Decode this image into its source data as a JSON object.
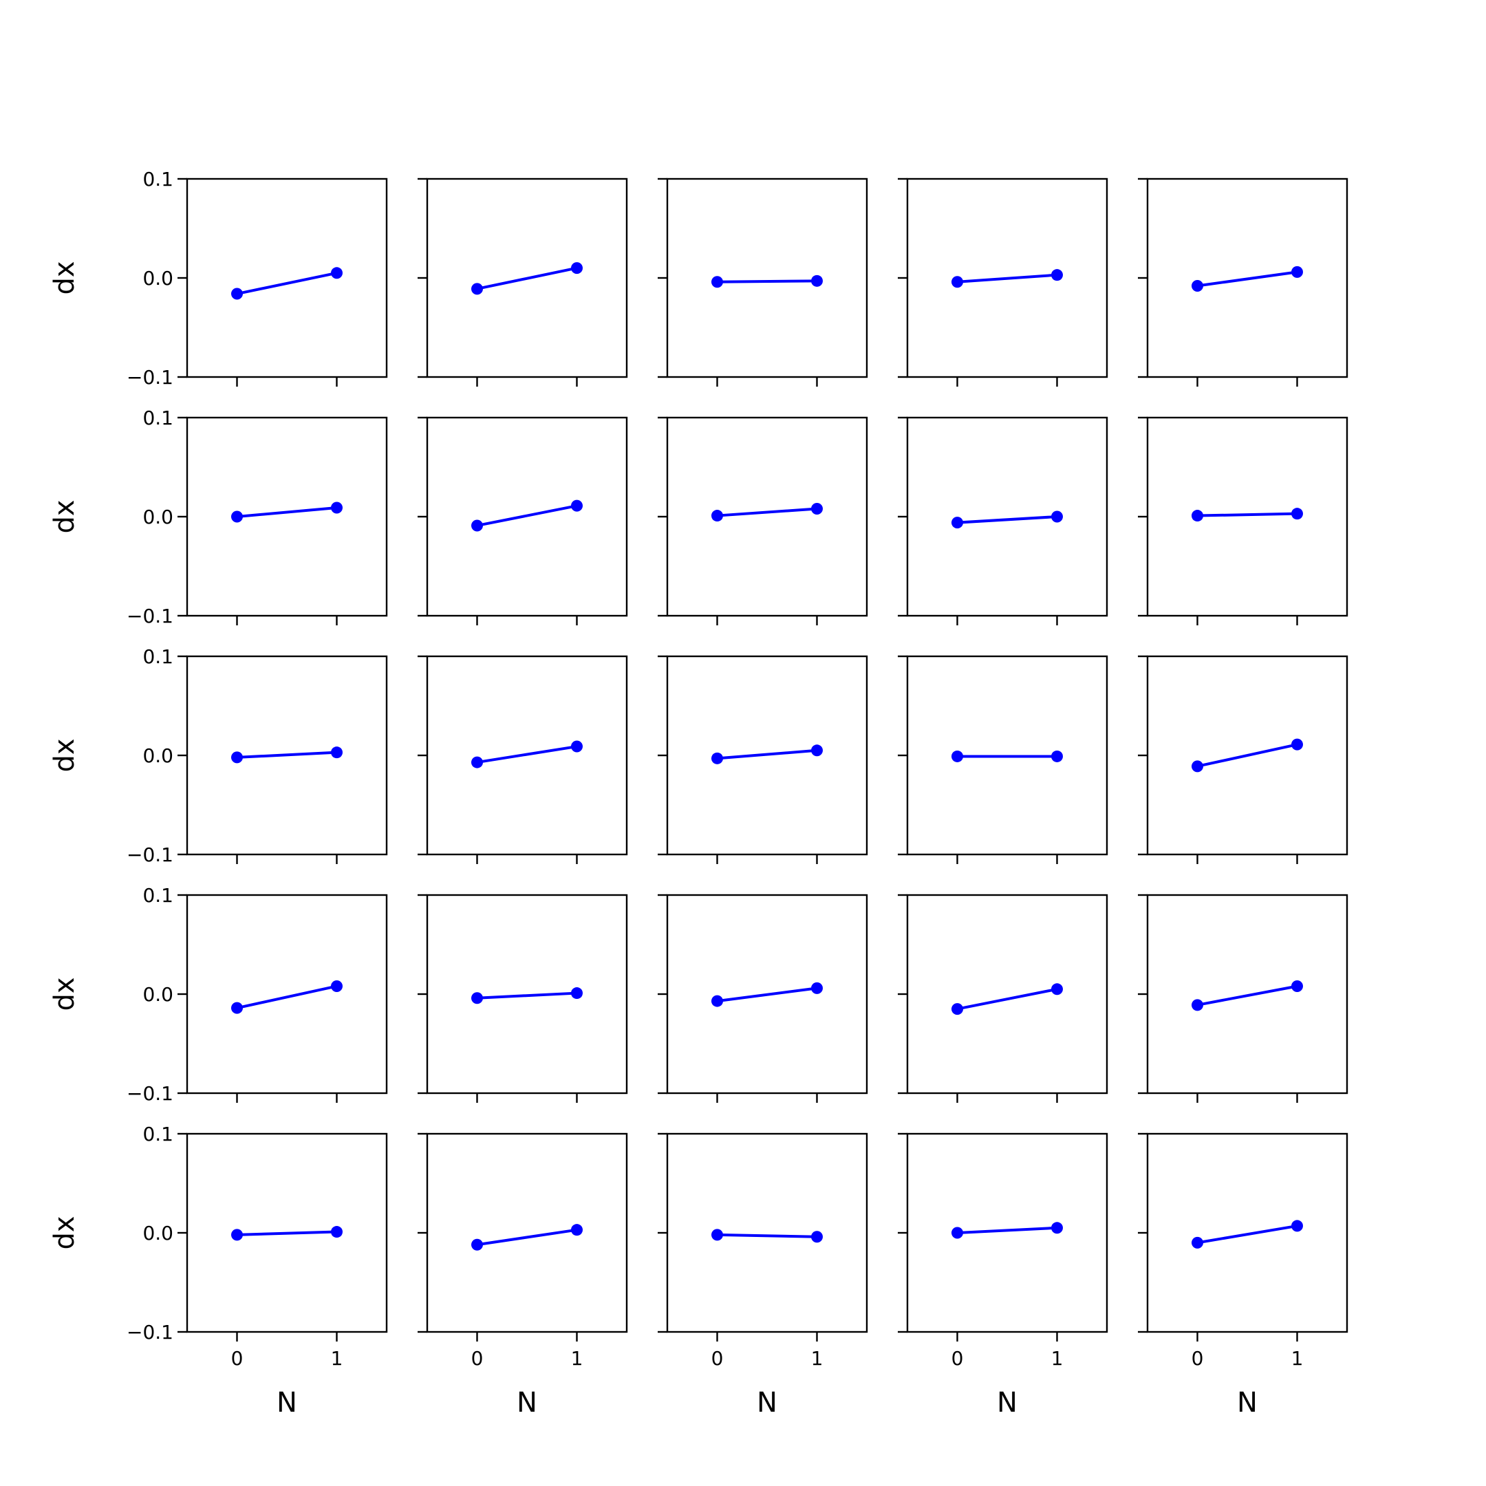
{
  "chart_data": {
    "type": "line",
    "layout": "5x5 grid of small multiples, shared x and y axes",
    "xlabel": "N",
    "ylabel": "dx",
    "x_ticks": [
      0,
      1
    ],
    "x_tick_labels": [
      "0",
      "1"
    ],
    "y_ticks": [
      -0.1,
      0.0,
      0.1
    ],
    "y_tick_labels": [
      "−0.1",
      "0.0",
      "0.1"
    ],
    "xlim": [
      -0.5,
      1.5
    ],
    "ylim": [
      -0.1,
      0.1
    ],
    "grid": false,
    "legend": false,
    "color": "#0000ff",
    "marker": "circle",
    "subplots": [
      {
        "row": 0,
        "col": 0,
        "x": [
          0,
          1
        ],
        "y": [
          -0.016,
          0.005
        ]
      },
      {
        "row": 0,
        "col": 1,
        "x": [
          0,
          1
        ],
        "y": [
          -0.011,
          0.01
        ]
      },
      {
        "row": 0,
        "col": 2,
        "x": [
          0,
          1
        ],
        "y": [
          -0.004,
          -0.003
        ]
      },
      {
        "row": 0,
        "col": 3,
        "x": [
          0,
          1
        ],
        "y": [
          -0.004,
          0.003
        ]
      },
      {
        "row": 0,
        "col": 4,
        "x": [
          0,
          1
        ],
        "y": [
          -0.008,
          0.006
        ]
      },
      {
        "row": 1,
        "col": 0,
        "x": [
          0,
          1
        ],
        "y": [
          0.0,
          0.009
        ]
      },
      {
        "row": 1,
        "col": 1,
        "x": [
          0,
          1
        ],
        "y": [
          -0.009,
          0.011
        ]
      },
      {
        "row": 1,
        "col": 2,
        "x": [
          0,
          1
        ],
        "y": [
          0.001,
          0.008
        ]
      },
      {
        "row": 1,
        "col": 3,
        "x": [
          0,
          1
        ],
        "y": [
          -0.006,
          0.0
        ]
      },
      {
        "row": 1,
        "col": 4,
        "x": [
          0,
          1
        ],
        "y": [
          0.001,
          0.003
        ]
      },
      {
        "row": 2,
        "col": 0,
        "x": [
          0,
          1
        ],
        "y": [
          -0.002,
          0.003
        ]
      },
      {
        "row": 2,
        "col": 1,
        "x": [
          0,
          1
        ],
        "y": [
          -0.007,
          0.009
        ]
      },
      {
        "row": 2,
        "col": 2,
        "x": [
          0,
          1
        ],
        "y": [
          -0.003,
          0.005
        ]
      },
      {
        "row": 2,
        "col": 3,
        "x": [
          0,
          1
        ],
        "y": [
          -0.001,
          -0.001
        ]
      },
      {
        "row": 2,
        "col": 4,
        "x": [
          0,
          1
        ],
        "y": [
          -0.011,
          0.011
        ]
      },
      {
        "row": 3,
        "col": 0,
        "x": [
          0,
          1
        ],
        "y": [
          -0.014,
          0.008
        ]
      },
      {
        "row": 3,
        "col": 1,
        "x": [
          0,
          1
        ],
        "y": [
          -0.004,
          0.001
        ]
      },
      {
        "row": 3,
        "col": 2,
        "x": [
          0,
          1
        ],
        "y": [
          -0.007,
          0.006
        ]
      },
      {
        "row": 3,
        "col": 3,
        "x": [
          0,
          1
        ],
        "y": [
          -0.015,
          0.005
        ]
      },
      {
        "row": 3,
        "col": 4,
        "x": [
          0,
          1
        ],
        "y": [
          -0.011,
          0.008
        ]
      },
      {
        "row": 4,
        "col": 0,
        "x": [
          0,
          1
        ],
        "y": [
          -0.002,
          0.001
        ]
      },
      {
        "row": 4,
        "col": 1,
        "x": [
          0,
          1
        ],
        "y": [
          -0.012,
          0.003
        ]
      },
      {
        "row": 4,
        "col": 2,
        "x": [
          0,
          1
        ],
        "y": [
          -0.002,
          -0.004
        ]
      },
      {
        "row": 4,
        "col": 3,
        "x": [
          0,
          1
        ],
        "y": [
          0.0,
          0.005
        ]
      },
      {
        "row": 4,
        "col": 4,
        "x": [
          0,
          1
        ],
        "y": [
          -0.01,
          0.007
        ]
      }
    ]
  }
}
